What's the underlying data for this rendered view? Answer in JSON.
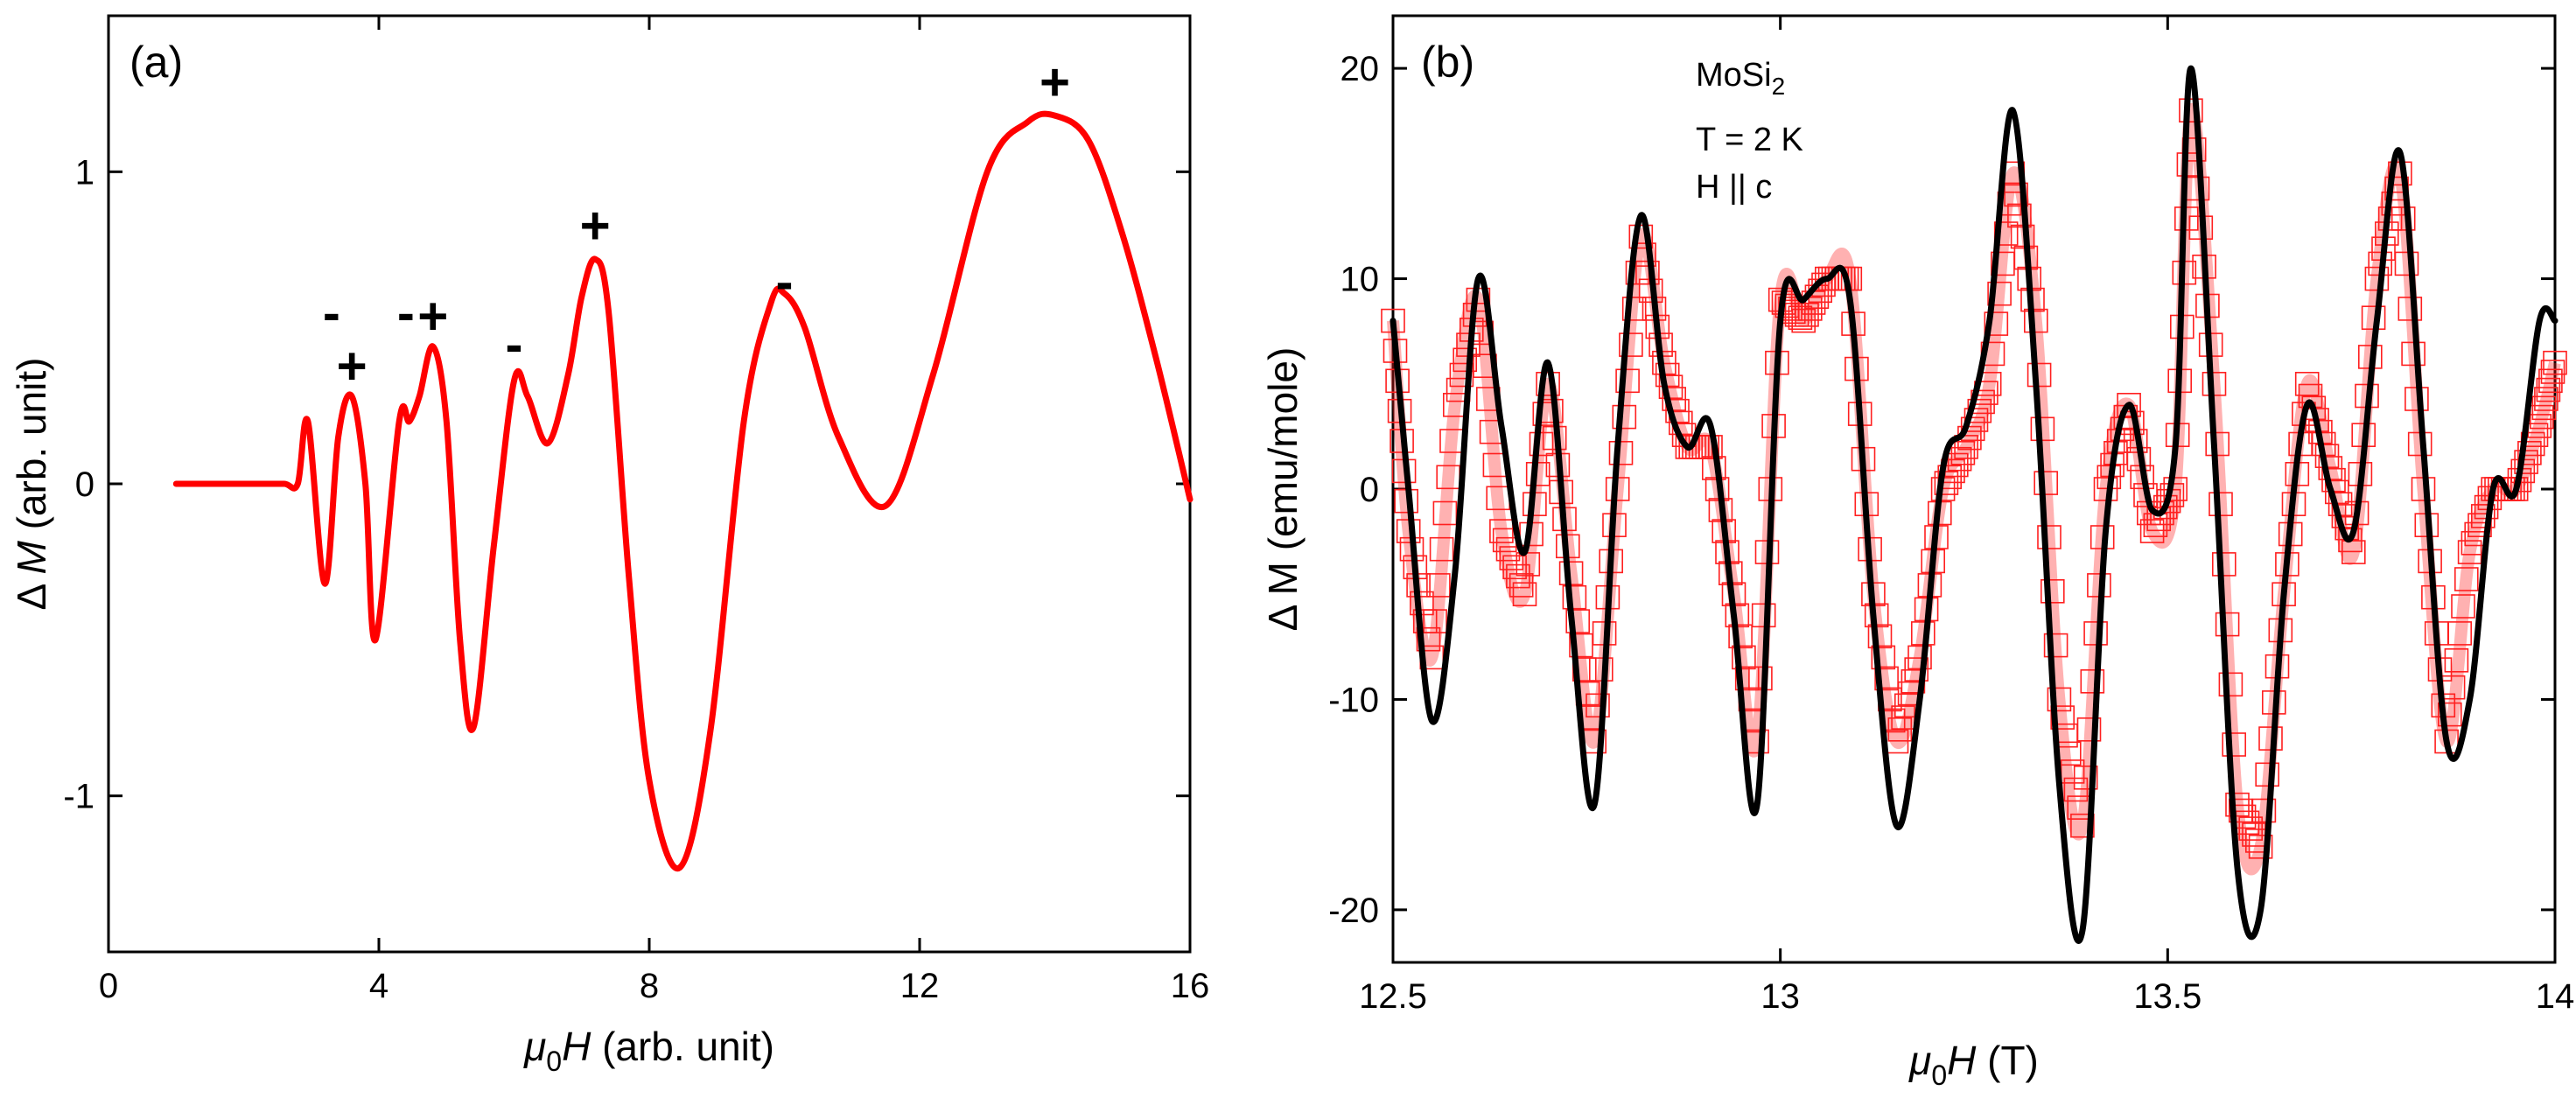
{
  "panels": [
    {
      "id": "a",
      "panel_label": "(a)",
      "xlabel_sym": "μ",
      "xlabel_sub": "0",
      "xlabel_var": "H",
      "xlabel_unit": " (arb. unit)",
      "ylabel_prefix": "Δ ",
      "ylabel_var": "M",
      "ylabel_unit": " (arb. unit)"
    },
    {
      "id": "b",
      "panel_label": "(b)",
      "xlabel_sym": "μ",
      "xlabel_sub": "0",
      "xlabel_var": "H",
      "xlabel_unit": " (T)",
      "ylabel_text": "Δ M (emu/mole)",
      "annotation": {
        "material_main": "MoSi",
        "material_sub": "2",
        "temperature": "T = 2 K",
        "field": "H || c"
      }
    }
  ],
  "chart_data": [
    {
      "type": "line",
      "panel": "a",
      "title": "",
      "xlabel": "μ0H (arb. unit)",
      "ylabel": "Δ M (arb. unit)",
      "xlim": [
        0,
        16
      ],
      "ylim": [
        -1.5,
        1.5
      ],
      "xticks": [
        0,
        4,
        8,
        12,
        16
      ],
      "xtick_labels": [
        "0",
        "4",
        "8",
        "12",
        "16"
      ],
      "yticks": [
        -1,
        0,
        1
      ],
      "ytick_labels": [
        "-1",
        "0",
        "1"
      ],
      "series": [
        {
          "name": "ΔM",
          "color": "#ff0000",
          "x": [
            1.0,
            1.4,
            1.8,
            2.2,
            2.6,
            2.8,
            2.95,
            3.2,
            3.4,
            3.6,
            3.8,
            3.95,
            4.3,
            4.45,
            4.6,
            4.8,
            5.0,
            5.2,
            5.4,
            5.7,
            6.0,
            6.2,
            6.5,
            6.8,
            7.0,
            7.2,
            7.4,
            7.7,
            8.0,
            8.45,
            8.9,
            9.4,
            9.8,
            10.0,
            10.3,
            10.8,
            11.5,
            12.2,
            13.0,
            13.6,
            14.0,
            14.5,
            15.0,
            15.5,
            16.0
          ],
          "y": [
            0.0,
            0.0,
            0.0,
            0.0,
            0.0,
            0.0,
            0.2,
            -0.32,
            0.15,
            0.28,
            0.0,
            -0.5,
            0.2,
            0.2,
            0.28,
            0.44,
            0.2,
            -0.5,
            -0.78,
            -0.2,
            0.33,
            0.28,
            0.13,
            0.35,
            0.6,
            0.72,
            0.55,
            -0.3,
            -0.95,
            -1.23,
            -0.8,
            0.2,
            0.58,
            0.61,
            0.5,
            0.15,
            -0.07,
            0.35,
            1.0,
            1.16,
            1.18,
            1.1,
            0.8,
            0.4,
            -0.05
          ]
        }
      ],
      "annotations": [
        {
          "text": "-",
          "x": 3.3,
          "y": 0.49
        },
        {
          "text": "+",
          "x": 3.6,
          "y": 0.32
        },
        {
          "text": "-",
          "x": 4.4,
          "y": 0.49
        },
        {
          "text": "+",
          "x": 4.8,
          "y": 0.48
        },
        {
          "text": "-",
          "x": 6.0,
          "y": 0.39
        },
        {
          "text": "+",
          "x": 7.2,
          "y": 0.77
        },
        {
          "text": "-",
          "x": 10.0,
          "y": 0.59
        },
        {
          "text": "+",
          "x": 14.0,
          "y": 1.23
        }
      ]
    },
    {
      "type": "line",
      "panel": "b",
      "title": "",
      "xlabel": "μ0H (T)",
      "ylabel": "Δ M (emu/mole)",
      "xlim": [
        12.5,
        14.0
      ],
      "ylim": [
        -22.5,
        22.5
      ],
      "xticks": [
        12.5,
        13,
        13.5,
        14
      ],
      "xtick_labels": [
        "12.5",
        "13",
        "13.5",
        "14"
      ],
      "yticks": [
        -20,
        -10,
        0,
        10,
        20
      ],
      "ytick_labels": [
        "-20",
        "-10",
        "0",
        "10",
        "20"
      ],
      "series": [
        {
          "name": "data",
          "marker": "square",
          "color": "#ff2020",
          "x": [
            12.5,
            12.52,
            12.55,
            12.58,
            12.61,
            12.64,
            12.67,
            12.7,
            12.73,
            12.76,
            12.79,
            12.82,
            12.85,
            12.88,
            12.91,
            12.94,
            12.97,
            13.0,
            13.03,
            13.06,
            13.09,
            13.12,
            13.15,
            13.18,
            13.21,
            13.24,
            13.27,
            13.3,
            13.33,
            13.36,
            13.39,
            13.42,
            13.45,
            13.48,
            13.51,
            13.53,
            13.56,
            13.59,
            13.62,
            13.65,
            13.68,
            13.71,
            13.74,
            13.77,
            13.8,
            13.83,
            13.86,
            13.89,
            13.92,
            13.95,
            13.98,
            14.0
          ],
          "y": [
            8,
            -2,
            -8,
            4,
            9,
            -2,
            -5,
            5,
            -4,
            -12,
            0,
            12,
            6,
            2,
            2,
            -5,
            -12,
            9,
            8,
            10,
            10,
            -5,
            -12,
            -8,
            0,
            2,
            5,
            15,
            8,
            -10,
            -16,
            0,
            4,
            -2,
            0,
            18,
            5,
            -15,
            -17,
            -5,
            5,
            1,
            -3,
            10,
            15,
            0,
            -12,
            -3,
            0,
            0,
            3,
            6
          ]
        },
        {
          "name": "fit",
          "color": "#000000",
          "x": [
            12.5,
            12.52,
            12.55,
            12.58,
            12.61,
            12.64,
            12.67,
            12.7,
            12.73,
            12.76,
            12.79,
            12.82,
            12.85,
            12.88,
            12.91,
            12.94,
            12.97,
            13.0,
            13.03,
            13.06,
            13.09,
            13.12,
            13.15,
            13.18,
            13.21,
            13.24,
            13.27,
            13.3,
            13.33,
            13.36,
            13.39,
            13.42,
            13.45,
            13.48,
            13.51,
            13.53,
            13.56,
            13.59,
            13.62,
            13.65,
            13.68,
            13.71,
            13.74,
            13.77,
            13.8,
            13.83,
            13.86,
            13.89,
            13.92,
            13.95,
            13.98,
            14.0
          ],
          "y": [
            8,
            0,
            -11,
            -4,
            10,
            3,
            -3,
            6,
            -6,
            -15,
            2,
            13,
            5,
            2,
            3,
            -6,
            -15,
            8,
            9,
            10,
            9,
            -6,
            -16,
            -10,
            1,
            3,
            8,
            18,
            5,
            -14,
            -21,
            -2,
            4,
            -1,
            2,
            20,
            2,
            -18,
            -20,
            -5,
            4,
            0,
            -2,
            8,
            16,
            2,
            -12,
            -10,
            0,
            0,
            8,
            8
          ]
        }
      ]
    }
  ]
}
